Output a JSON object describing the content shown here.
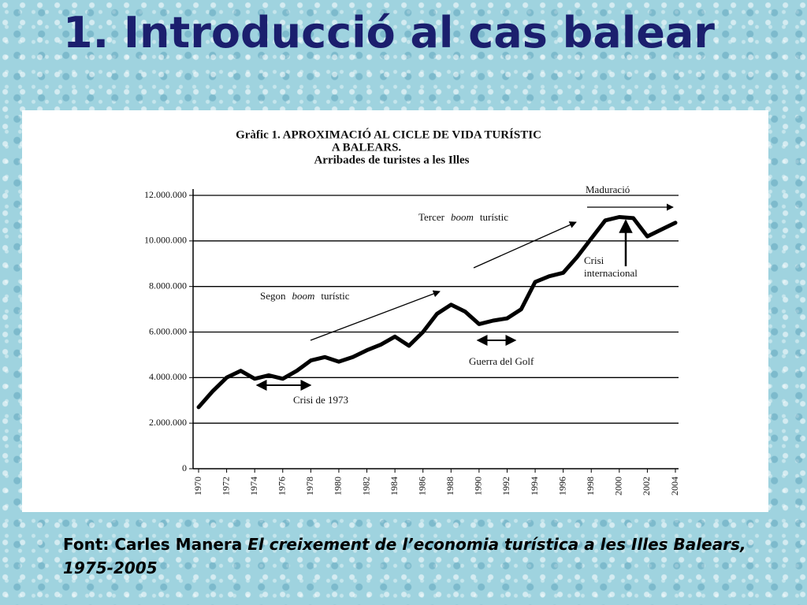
{
  "slide_title": "1. Introducció al cas balear",
  "source": {
    "label": "Font: Carles Manera",
    "work": "El creixement de l’economia turística a les Illes Balears,",
    "years": "1975-2005"
  },
  "chart_data": {
    "type": "line",
    "title": [
      "Gràfic 1. APROXIMACIÓ AL CICLE DE VIDA TURÍSTIC",
      "A BALEARS."
    ],
    "subtitle": "Arribades de turistes a les Illes",
    "x": [
      1970,
      1971,
      1972,
      1973,
      1974,
      1975,
      1976,
      1977,
      1978,
      1979,
      1980,
      1981,
      1982,
      1983,
      1984,
      1985,
      1986,
      1987,
      1988,
      1989,
      1990,
      1991,
      1992,
      1993,
      1994,
      1995,
      1996,
      1997,
      1998,
      1999,
      2000,
      2001,
      2002,
      2003,
      2004
    ],
    "values": [
      2700000,
      3400000,
      4000000,
      4300000,
      3950000,
      4100000,
      3950000,
      4300000,
      4750000,
      4900000,
      4700000,
      4900000,
      5200000,
      5450000,
      5800000,
      5400000,
      6000000,
      6800000,
      7200000,
      6900000,
      6350000,
      6500000,
      6600000,
      7000000,
      8200000,
      8450000,
      8600000,
      9300000,
      10100000,
      10900000,
      11050000,
      11000000,
      10200000,
      10500000,
      10800000
    ],
    "color": "#000000",
    "xlim": [
      1970,
      2004
    ],
    "xticks": [
      1970,
      1972,
      1974,
      1976,
      1978,
      1980,
      1982,
      1984,
      1986,
      1988,
      1990,
      1992,
      1994,
      1996,
      1998,
      2000,
      2002,
      2004
    ],
    "ylim": [
      0,
      12000000
    ],
    "yticks": [
      0,
      {
        "value": 2000000,
        "label": "2.000.000"
      },
      {
        "value": 4000000,
        "label": "4.000.000"
      },
      {
        "value": 6000000,
        "label": "6.000.000"
      },
      {
        "value": 8000000,
        "label": "8.000.000"
      },
      {
        "value": 10000000,
        "label": "10.000.000"
      },
      {
        "value": 12000000,
        "label": "12.000.000"
      }
    ],
    "grid": true,
    "annotations": [
      {
        "parts": [
          "Maduració"
        ]
      },
      {
        "parts": [
          "Tercer",
          "boom",
          "turístic"
        ]
      },
      {
        "parts": [
          "Segon",
          "boom",
          "turístic"
        ]
      },
      {
        "parts": [
          "Crisi",
          "internacional"
        ]
      },
      {
        "parts": [
          "Guerra del Golf"
        ]
      },
      {
        "parts": [
          "Crisi de 1973"
        ]
      }
    ]
  }
}
